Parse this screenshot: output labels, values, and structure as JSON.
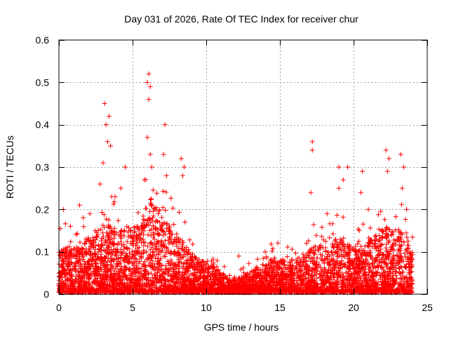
{
  "chart_data": {
    "type": "scatter",
    "title": "Day 031 of 2026, Rate Of TEC Index for receiver chur",
    "xlabel": "GPS time / hours",
    "ylabel": "ROTI / TECUs",
    "xlim": [
      0,
      25
    ],
    "ylim": [
      0,
      0.6
    ],
    "x_ticks": [
      0,
      5,
      10,
      15,
      20,
      25
    ],
    "x_tick_labels": [
      "0",
      "5",
      "10",
      "15",
      "20",
      "25"
    ],
    "y_ticks": [
      0,
      0.1,
      0.2,
      0.3,
      0.4,
      0.5,
      0.6
    ],
    "y_tick_labels": [
      "0",
      "0.1",
      "0.2",
      "0.3",
      "0.4",
      "0.5",
      "0.6"
    ],
    "grid": true,
    "marker": "plus",
    "color": "#ff0000",
    "envelope": {
      "hours": [
        0,
        0.5,
        1,
        1.5,
        2,
        2.5,
        3,
        3.5,
        4,
        4.5,
        5,
        5.5,
        6,
        6.5,
        7,
        7.5,
        8,
        8.5,
        9,
        9.5,
        10,
        10.5,
        11,
        11.5,
        12,
        12.5,
        13,
        13.5,
        14,
        14.5,
        15,
        15.5,
        16,
        16.5,
        17,
        17.5,
        18,
        18.5,
        19,
        19.5,
        20,
        20.5,
        21,
        21.5,
        22,
        22.5,
        23,
        23.5,
        24
      ],
      "typical_max": [
        0.1,
        0.11,
        0.11,
        0.12,
        0.13,
        0.14,
        0.16,
        0.16,
        0.15,
        0.15,
        0.16,
        0.16,
        0.22,
        0.22,
        0.18,
        0.16,
        0.14,
        0.12,
        0.09,
        0.08,
        0.07,
        0.07,
        0.05,
        0.03,
        0.03,
        0.04,
        0.05,
        0.06,
        0.07,
        0.08,
        0.08,
        0.08,
        0.08,
        0.09,
        0.1,
        0.12,
        0.11,
        0.12,
        0.13,
        0.13,
        0.1,
        0.11,
        0.12,
        0.14,
        0.15,
        0.16,
        0.15,
        0.14,
        0.1
      ]
    },
    "peaks": [
      {
        "x": 0.3,
        "y": 0.2
      },
      {
        "x": 1.4,
        "y": 0.21
      },
      {
        "x": 2.1,
        "y": 0.19
      },
      {
        "x": 2.8,
        "y": 0.26
      },
      {
        "x": 3.1,
        "y": 0.45
      },
      {
        "x": 3.2,
        "y": 0.4
      },
      {
        "x": 3.4,
        "y": 0.42
      },
      {
        "x": 3.3,
        "y": 0.36
      },
      {
        "x": 3.5,
        "y": 0.35
      },
      {
        "x": 3.0,
        "y": 0.31
      },
      {
        "x": 4.2,
        "y": 0.25
      },
      {
        "x": 4.5,
        "y": 0.3
      },
      {
        "x": 5.8,
        "y": 0.27
      },
      {
        "x": 6.0,
        "y": 0.5
      },
      {
        "x": 6.1,
        "y": 0.52
      },
      {
        "x": 6.2,
        "y": 0.49
      },
      {
        "x": 6.1,
        "y": 0.46
      },
      {
        "x": 6.0,
        "y": 0.37
      },
      {
        "x": 6.2,
        "y": 0.33
      },
      {
        "x": 6.3,
        "y": 0.3
      },
      {
        "x": 7.2,
        "y": 0.4
      },
      {
        "x": 7.1,
        "y": 0.33
      },
      {
        "x": 7.3,
        "y": 0.28
      },
      {
        "x": 8.3,
        "y": 0.32
      },
      {
        "x": 8.5,
        "y": 0.3
      },
      {
        "x": 8.4,
        "y": 0.28
      },
      {
        "x": 12.2,
        "y": 0.09
      },
      {
        "x": 14.0,
        "y": 0.1
      },
      {
        "x": 16.8,
        "y": 0.12
      },
      {
        "x": 17.2,
        "y": 0.36
      },
      {
        "x": 17.2,
        "y": 0.34
      },
      {
        "x": 17.1,
        "y": 0.24
      },
      {
        "x": 18.2,
        "y": 0.19
      },
      {
        "x": 19.0,
        "y": 0.3
      },
      {
        "x": 19.3,
        "y": 0.27
      },
      {
        "x": 19.0,
        "y": 0.25
      },
      {
        "x": 19.6,
        "y": 0.3
      },
      {
        "x": 20.6,
        "y": 0.29
      },
      {
        "x": 20.5,
        "y": 0.24
      },
      {
        "x": 21.0,
        "y": 0.2
      },
      {
        "x": 22.2,
        "y": 0.34
      },
      {
        "x": 22.4,
        "y": 0.32
      },
      {
        "x": 22.3,
        "y": 0.29
      },
      {
        "x": 23.2,
        "y": 0.33
      },
      {
        "x": 23.4,
        "y": 0.3
      },
      {
        "x": 23.3,
        "y": 0.25
      },
      {
        "x": 23.6,
        "y": 0.2
      }
    ]
  }
}
